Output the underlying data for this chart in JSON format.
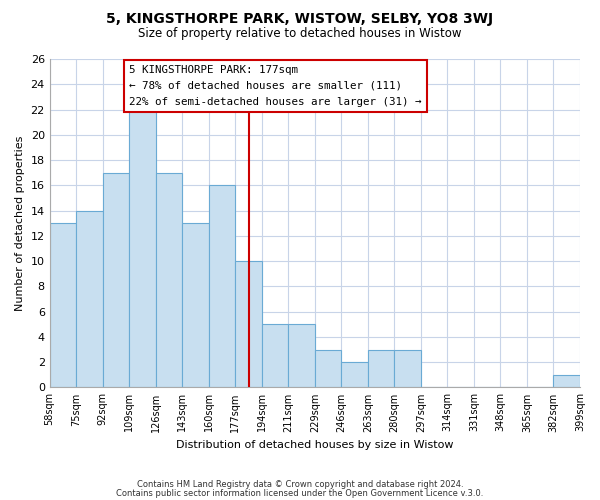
{
  "title": "5, KINGSTHORPE PARK, WISTOW, SELBY, YO8 3WJ",
  "subtitle": "Size of property relative to detached houses in Wistow",
  "xlabel": "Distribution of detached houses by size in Wistow",
  "ylabel": "Number of detached properties",
  "bin_labels": [
    "58sqm",
    "75sqm",
    "92sqm",
    "109sqm",
    "126sqm",
    "143sqm",
    "160sqm",
    "177sqm",
    "194sqm",
    "211sqm",
    "229sqm",
    "246sqm",
    "263sqm",
    "280sqm",
    "297sqm",
    "314sqm",
    "331sqm",
    "348sqm",
    "365sqm",
    "382sqm",
    "399sqm"
  ],
  "counts": [
    13,
    14,
    17,
    22,
    17,
    13,
    16,
    10,
    5,
    5,
    3,
    2,
    3,
    3,
    0,
    0,
    0,
    0,
    0,
    1
  ],
  "bar_color": "#c8dff0",
  "bar_edge_color": "#6aaad4",
  "highlight_line_color": "#cc0000",
  "highlight_line_index": 7,
  "annotation_title": "5 KINGSTHORPE PARK: 177sqm",
  "annotation_line1": "← 78% of detached houses are smaller (111)",
  "annotation_line2": "22% of semi-detached houses are larger (31) →",
  "annotation_box_facecolor": "#ffffff",
  "annotation_box_edgecolor": "#cc0000",
  "ylim": [
    0,
    26
  ],
  "yticks": [
    0,
    2,
    4,
    6,
    8,
    10,
    12,
    14,
    16,
    18,
    20,
    22,
    24,
    26
  ],
  "footer_line1": "Contains HM Land Registry data © Crown copyright and database right 2024.",
  "footer_line2": "Contains public sector information licensed under the Open Government Licence v.3.0.",
  "background_color": "#ffffff",
  "grid_color": "#c8d4e8"
}
